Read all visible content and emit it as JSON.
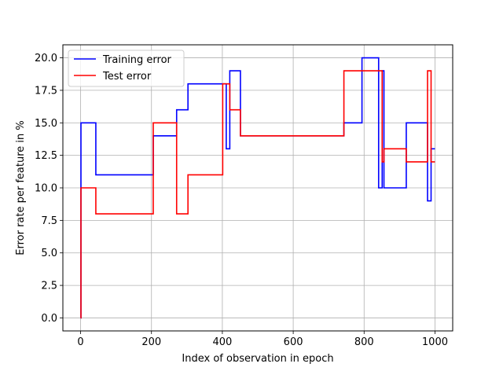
{
  "chart_data": {
    "type": "line",
    "xlabel": "Index of observation in epoch",
    "ylabel": "Error rate per feature in %",
    "xlim": [
      -50,
      1050
    ],
    "ylim": [
      -1,
      21
    ],
    "xticks": [
      0,
      200,
      400,
      600,
      800,
      1000
    ],
    "yticks": [
      0.0,
      2.5,
      5.0,
      7.5,
      10.0,
      12.5,
      15.0,
      17.5,
      20.0
    ],
    "xtick_labels": [
      "0",
      "200",
      "400",
      "600",
      "800",
      "1000"
    ],
    "ytick_labels": [
      "0.0",
      "2.5",
      "5.0",
      "7.5",
      "10.0",
      "12.5",
      "15.0",
      "17.5",
      "20.0"
    ],
    "grid": true,
    "legend_position": "top-left",
    "series": [
      {
        "name": "Training error",
        "color": "#0000ff",
        "step": true,
        "points": [
          [
            0,
            0
          ],
          [
            1,
            15
          ],
          [
            42,
            15
          ],
          [
            43,
            11
          ],
          [
            204,
            11
          ],
          [
            205,
            14
          ],
          [
            270,
            14
          ],
          [
            271,
            16
          ],
          [
            302,
            16
          ],
          [
            303,
            18
          ],
          [
            410,
            18
          ],
          [
            411,
            13
          ],
          [
            420,
            13
          ],
          [
            421,
            19
          ],
          [
            450,
            19
          ],
          [
            451,
            14
          ],
          [
            742,
            14
          ],
          [
            743,
            15
          ],
          [
            793,
            15
          ],
          [
            794,
            20
          ],
          [
            840,
            20
          ],
          [
            841,
            10
          ],
          [
            850,
            10
          ],
          [
            851,
            19
          ],
          [
            855,
            19
          ],
          [
            856,
            10
          ],
          [
            918,
            10
          ],
          [
            919,
            15
          ],
          [
            978,
            15
          ],
          [
            979,
            9
          ],
          [
            988,
            9
          ],
          [
            989,
            13
          ],
          [
            1000,
            13
          ]
        ]
      },
      {
        "name": "Test error",
        "color": "#ff0000",
        "step": true,
        "points": [
          [
            0,
            0
          ],
          [
            1,
            10
          ],
          [
            42,
            10
          ],
          [
            43,
            8
          ],
          [
            204,
            8
          ],
          [
            205,
            15
          ],
          [
            270,
            15
          ],
          [
            271,
            8
          ],
          [
            302,
            8
          ],
          [
            303,
            11
          ],
          [
            400,
            11
          ],
          [
            401,
            18
          ],
          [
            420,
            18
          ],
          [
            421,
            16
          ],
          [
            450,
            16
          ],
          [
            451,
            14
          ],
          [
            742,
            14
          ],
          [
            743,
            19
          ],
          [
            850,
            19
          ],
          [
            851,
            12
          ],
          [
            855,
            12
          ],
          [
            856,
            13
          ],
          [
            918,
            13
          ],
          [
            919,
            12
          ],
          [
            978,
            12
          ],
          [
            979,
            19
          ],
          [
            988,
            19
          ],
          [
            989,
            12
          ],
          [
            1000,
            12
          ]
        ]
      }
    ]
  }
}
